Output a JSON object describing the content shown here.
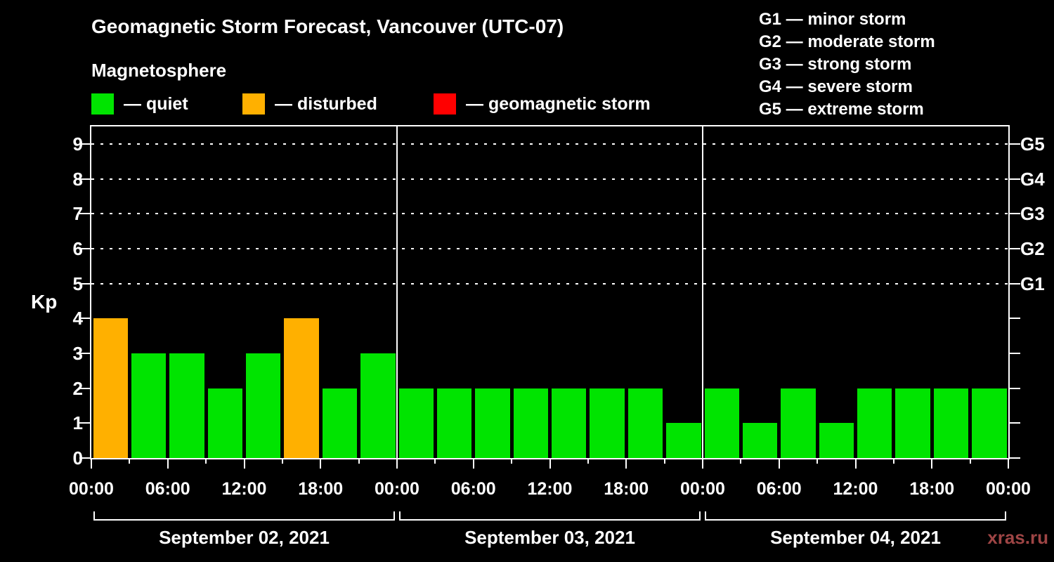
{
  "title": "Geomagnetic Storm Forecast, Vancouver (UTC-07)",
  "subtitle": "Magnetosphere",
  "legend": {
    "items": [
      {
        "name": "quiet",
        "label": "— quiet",
        "color": "#00e400"
      },
      {
        "name": "disturbed",
        "label": "— disturbed",
        "color": "#ffb000"
      },
      {
        "name": "storm",
        "label": "— geomagnetic storm",
        "color": "#ff0000"
      }
    ]
  },
  "storm_scale_legend": [
    {
      "label": "G1 — minor storm"
    },
    {
      "label": "G2 — moderate storm"
    },
    {
      "label": "G3 — strong storm"
    },
    {
      "label": "G4 — severe storm"
    },
    {
      "label": "G5 — extreme storm"
    }
  ],
  "watermark": "xras.ru",
  "watermark_color": "#9e4545",
  "chart_data": {
    "type": "bar",
    "title": "Geomagnetic Storm Forecast, Vancouver (UTC-07)",
    "ylabel": "Kp",
    "ylim": [
      0,
      9.5
    ],
    "kp_axis_max": 9.5,
    "total_hours": 72,
    "bar_hours": 3,
    "y_ticks": [
      0,
      1,
      2,
      3,
      4,
      5,
      6,
      7,
      8,
      9
    ],
    "grid_levels": [
      5,
      6,
      7,
      8,
      9
    ],
    "grid_style": "dashed",
    "day_boundaries_hours": [
      24,
      48
    ],
    "right_axis": [
      {
        "label": "G1",
        "kp": 5
      },
      {
        "label": "G2",
        "kp": 6
      },
      {
        "label": "G3",
        "kp": 7
      },
      {
        "label": "G4",
        "kp": 8
      },
      {
        "label": "G5",
        "kp": 9
      }
    ],
    "x_tick_labels": [
      "00:00",
      "06:00",
      "12:00",
      "18:00",
      "00:00",
      "06:00",
      "12:00",
      "18:00",
      "00:00",
      "06:00",
      "12:00",
      "18:00",
      "00:00"
    ],
    "colors": {
      "quiet": "#00e400",
      "disturbed": "#ffb000",
      "storm": "#ff0000"
    },
    "thresholds": {
      "disturbed_min": 4,
      "storm_min": 5
    },
    "days": [
      {
        "date": "September 02, 2021",
        "values": [
          4,
          3,
          3,
          2,
          3,
          4,
          2,
          3
        ]
      },
      {
        "date": "September 03, 2021",
        "values": [
          2,
          2,
          2,
          2,
          2,
          2,
          2,
          1
        ]
      },
      {
        "date": "September 04, 2021",
        "values": [
          2,
          1,
          2,
          1,
          2,
          2,
          2,
          2
        ]
      }
    ]
  }
}
